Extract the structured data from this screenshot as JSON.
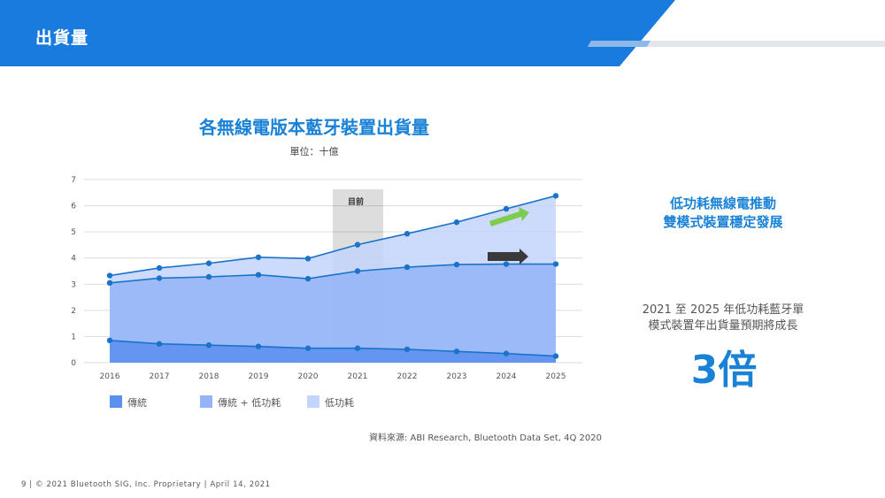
{
  "header": {
    "title": "出貨量"
  },
  "chart_data": {
    "type": "area",
    "title": "各無線電版本藍牙裝置出貨量",
    "subtitle": "單位：十億",
    "x": [
      "2016",
      "2017",
      "2018",
      "2019",
      "2020",
      "2021",
      "2022",
      "2023",
      "2024",
      "2025"
    ],
    "ylim": [
      0,
      7
    ],
    "yticks": [
      0,
      1,
      2,
      3,
      4,
      5,
      6,
      7
    ],
    "grid": true,
    "legend_position": "bottom",
    "annotation": "目前",
    "series": [
      {
        "name": "傳統",
        "color": "#5b8ff0",
        "line": "#1a73c8",
        "values": [
          0.85,
          0.72,
          0.67,
          0.62,
          0.55,
          0.55,
          0.51,
          0.43,
          0.35,
          0.25
        ]
      },
      {
        "name": "傳統 + 低功耗",
        "color": "#94b4f7",
        "line": "#1a73c8",
        "values": [
          3.05,
          3.23,
          3.28,
          3.36,
          3.21,
          3.5,
          3.65,
          3.75,
          3.77,
          3.77
        ]
      },
      {
        "name": "低功耗",
        "color": "#c3d5fa",
        "line": "#1a73c8",
        "values": [
          3.33,
          3.62,
          3.8,
          4.03,
          3.98,
          4.51,
          4.93,
          5.37,
          5.88,
          6.38
        ]
      }
    ]
  },
  "side": {
    "headline_line1": "低功耗無線電推動",
    "headline_line2": "雙模式裝置穩定發展",
    "text_line1": "2021 至 2025 年低功耗藍牙單",
    "text_line2": "模式裝置年出貨量預期將成長",
    "big": "3倍"
  },
  "source": "資料來源: ABI Research, Bluetooth Data Set, 4Q 2020",
  "footer": "9  |  © 2021 Bluetooth SIG, Inc. Proprietary  |  April 14, 2021",
  "colors": {
    "accent": "#1a82d6",
    "header": "#1a7bde",
    "green_arrow": "#7ecb4f",
    "dark_arrow": "#3a3a3a"
  }
}
